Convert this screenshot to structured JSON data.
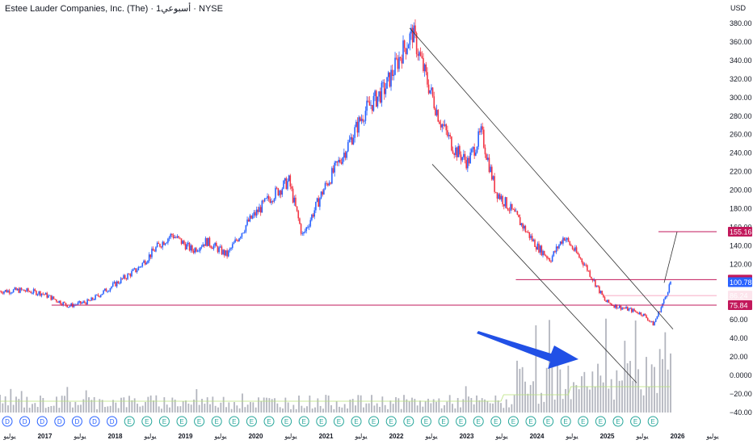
{
  "header": {
    "title": "Estee Lauder Companies, Inc. (The) · 1أسبوعي · NYSE",
    "currency": "USD"
  },
  "colors": {
    "up": "#2962ff",
    "down": "#f23645",
    "level_line": "#c2185b",
    "channel": "#333333",
    "arrow": "#2150e6",
    "volume": "#b2b5be",
    "volume_ma": "#b7e27a",
    "current_price": "#2962ff",
    "target_badge": "#c2185b",
    "small_level": "#f48fb1"
  },
  "chart_data": {
    "type": "line",
    "title": "Estee Lauder Companies, Inc. (The) · 1أسبوعي · NYSE",
    "ylim": [
      -40,
      380
    ],
    "yticks": [
      "380.00",
      "360.00",
      "340.00",
      "320.00",
      "300.00",
      "280.00",
      "260.00",
      "240.00",
      "220.00",
      "200.00",
      "180.00",
      "160.00",
      "140.00",
      "120.00",
      "100.00",
      "80.00",
      "60.00",
      "40.00",
      "20.00",
      "0.0000",
      "−20.00",
      "−40.00"
    ],
    "xticks": [
      "يوليو",
      "2017",
      "يوليو",
      "2018",
      "يوليو",
      "2019",
      "يوليو",
      "2020",
      "يوليو",
      "2021",
      "يوليو",
      "2022",
      "يوليو",
      "2023",
      "يوليو",
      "2024",
      "يوليو",
      "2025",
      "يوليو",
      "2026",
      "يوليو"
    ],
    "x": [
      2016.0,
      2016.3,
      2016.6,
      2017.0,
      2017.3,
      2017.6,
      2018.0,
      2018.3,
      2018.5,
      2018.8,
      2019.0,
      2019.3,
      2019.6,
      2019.9,
      2020.2,
      2020.4,
      2020.7,
      2021.0,
      2021.3,
      2021.6,
      2021.85,
      2022.0,
      2022.2,
      2022.4,
      2022.6,
      2022.8,
      2023.0,
      2023.2,
      2023.5,
      2023.8,
      2024.0,
      2024.2,
      2024.5,
      2024.8,
      2024.95,
      2025.2,
      2025.35,
      2025.5,
      2025.65,
      2025.75
    ],
    "series": [
      {
        "values": [
          91,
          92,
          89,
          75,
          80,
          95,
          115,
          140,
          152,
          135,
          145,
          130,
          165,
          190,
          210,
          150,
          200,
          240,
          285,
          310,
          350,
          370,
          320,
          275,
          245,
          230,
          262,
          200,
          172,
          140,
          125,
          150,
          120,
          80,
          75,
          70,
          66,
          55,
          80,
          101
        ]
      }
    ],
    "levels": [
      {
        "value": 155.16,
        "label": "155.16"
      },
      {
        "value": 103.41,
        "label": "103.41"
      },
      {
        "value": 100.78,
        "label": "100.78"
      },
      {
        "value": 86.24,
        "label": "86.24"
      },
      {
        "value": 75.84,
        "label": "75.84"
      }
    ],
    "earnings_markers": [
      "D",
      "D",
      "D",
      "D",
      "D",
      "D",
      "D",
      "E",
      "E",
      "E",
      "E",
      "E",
      "E",
      "E",
      "E",
      "E",
      "E",
      "E",
      "E",
      "E",
      "E",
      "E",
      "E",
      "E",
      "E",
      "E",
      "E",
      "E",
      "E",
      "E",
      "E",
      "E",
      "E",
      "E",
      "E",
      "E",
      "E",
      "E"
    ],
    "legend": "none",
    "grid": "off"
  }
}
